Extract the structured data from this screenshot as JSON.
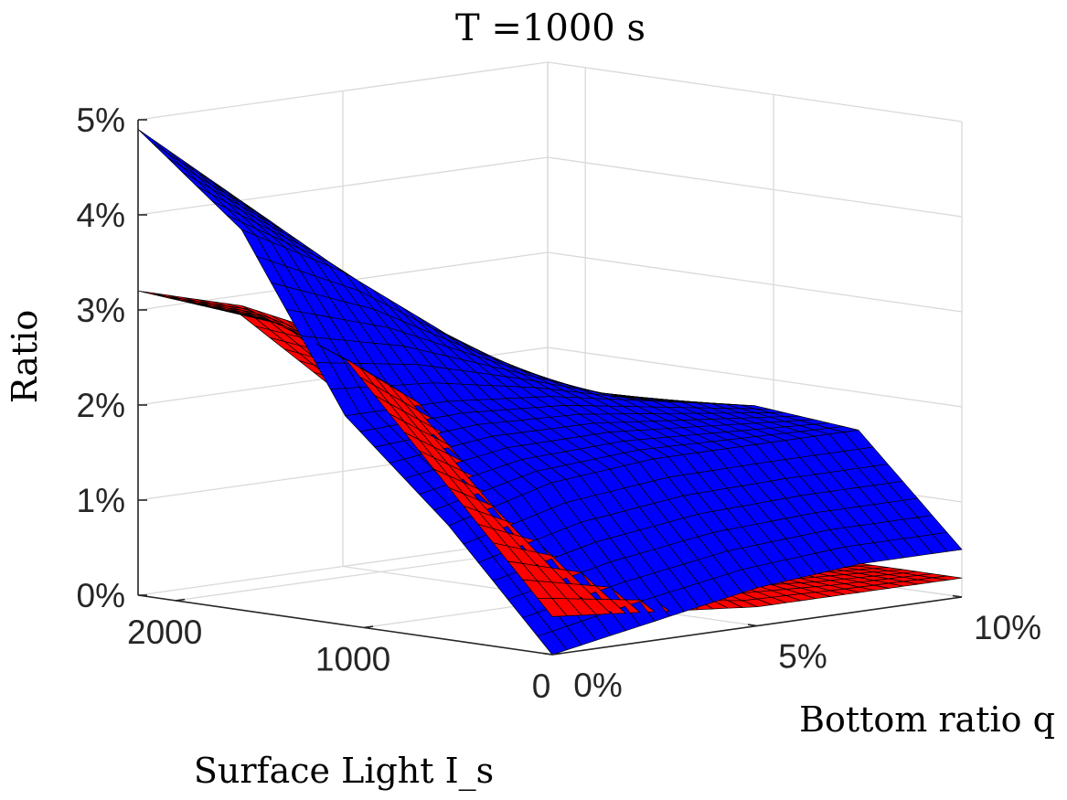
{
  "chart_data": {
    "type": "surface",
    "title": "T =1000 s",
    "zlabel": "Ratio",
    "xlabel": "Surface Light I_s",
    "ylabel": "Bottom ratio q",
    "x_ticks": [
      "2000",
      "1000",
      "0"
    ],
    "y_ticks": [
      "0%",
      "5%",
      "10%"
    ],
    "z_ticks": [
      "0%",
      "1%",
      "2%",
      "3%",
      "4%",
      "5%"
    ],
    "xlim": [
      0,
      2200
    ],
    "ylim": [
      0,
      0.1
    ],
    "zlim": [
      0,
      0.05
    ],
    "grid": true,
    "series": [
      {
        "color": "#ff0000",
        "x": [
          0,
          550,
          1100,
          1650,
          2200
        ],
        "y": [
          0,
          0.025,
          0.05,
          0.075,
          0.1
        ],
        "z": [
          [
            0.004,
            0.003,
            0.002,
            0.002,
            0.002
          ],
          [
            0.016,
            0.01,
            0.005,
            0.003,
            0.002
          ],
          [
            0.028,
            0.02,
            0.01,
            0.004,
            0.002
          ],
          [
            0.032,
            0.027,
            0.016,
            0.006,
            0.002
          ],
          [
            0.032,
            0.028,
            0.018,
            0.008,
            0.003
          ]
        ]
      },
      {
        "color": "#0000ff",
        "x": [
          0,
          550,
          1100,
          1650,
          2200
        ],
        "y": [
          0,
          0.025,
          0.05,
          0.075,
          0.1
        ],
        "z": [
          [
            0.0,
            0.002,
            0.004,
            0.005,
            0.005
          ],
          [
            0.012,
            0.015,
            0.016,
            0.016,
            0.016
          ],
          [
            0.022,
            0.022,
            0.021,
            0.019,
            0.017
          ],
          [
            0.04,
            0.034,
            0.026,
            0.019,
            0.016
          ],
          [
            0.049,
            0.04,
            0.028,
            0.019,
            0.016
          ]
        ]
      }
    ]
  }
}
